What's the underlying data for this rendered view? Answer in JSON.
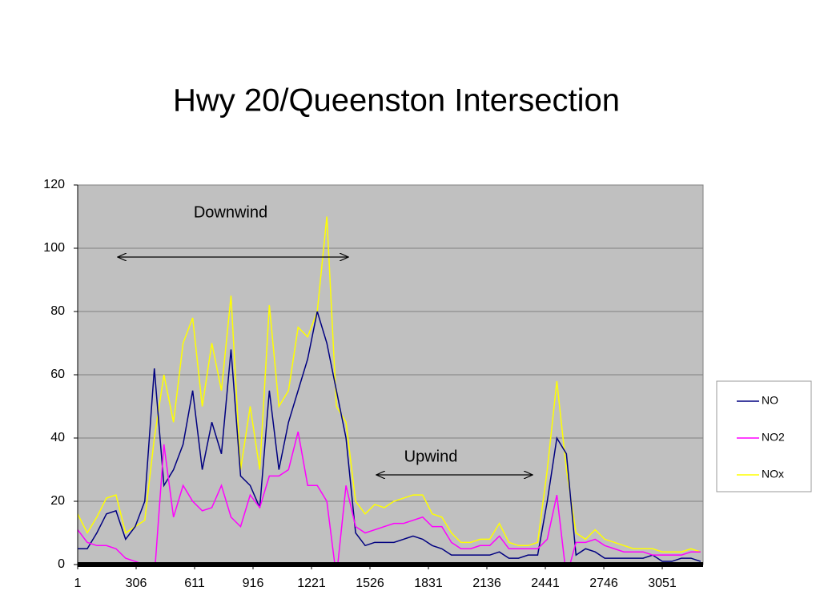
{
  "chart_data": {
    "type": "line",
    "title": "Hwy 20/Queenston Intersection",
    "annotations": [
      "Downwind",
      "Upwind"
    ],
    "x": [
      1,
      51,
      101,
      151,
      201,
      251,
      301,
      351,
      401,
      451,
      501,
      551,
      601,
      651,
      701,
      751,
      801,
      851,
      901,
      951,
      1001,
      1051,
      1101,
      1151,
      1201,
      1251,
      1301,
      1351,
      1401,
      1451,
      1501,
      1551,
      1601,
      1651,
      1701,
      1751,
      1801,
      1851,
      1901,
      1951,
      2001,
      2051,
      2101,
      2151,
      2201,
      2251,
      2301,
      2351,
      2401,
      2451,
      2501,
      2551,
      2601,
      2651,
      2701,
      2751,
      2801,
      2851,
      2901,
      2951,
      3001,
      3051,
      3101,
      3151,
      3201,
      3251
    ],
    "series": [
      {
        "name": "NO",
        "color": "#000080",
        "values": [
          5,
          5,
          10,
          16,
          17,
          8,
          12,
          20,
          62,
          25,
          30,
          38,
          55,
          30,
          45,
          35,
          68,
          28,
          25,
          18,
          55,
          30,
          45,
          55,
          65,
          80,
          70,
          55,
          40,
          10,
          6,
          7,
          7,
          7,
          8,
          9,
          8,
          6,
          5,
          3,
          3,
          3,
          3,
          3,
          4,
          2,
          2,
          3,
          3,
          20,
          40,
          35,
          3,
          5,
          4,
          2,
          2,
          2,
          2,
          2,
          3,
          1,
          1,
          2,
          2,
          1
        ]
      },
      {
        "name": "NO2",
        "color": "#ff00ff",
        "values": [
          11,
          7,
          6,
          6,
          5,
          2,
          1,
          0,
          -4,
          38,
          15,
          25,
          20,
          17,
          18,
          25,
          15,
          12,
          22,
          18,
          28,
          28,
          30,
          42,
          25,
          25,
          20,
          -4,
          25,
          12,
          10,
          11,
          12,
          13,
          13,
          14,
          15,
          12,
          12,
          7,
          5,
          5,
          6,
          6,
          9,
          5,
          5,
          5,
          5,
          8,
          22,
          -4,
          7,
          7,
          8,
          6,
          5,
          4,
          4,
          4,
          3,
          3,
          3,
          3,
          4,
          4
        ]
      },
      {
        "name": "NOx",
        "color": "#ffff00",
        "values": [
          16,
          10,
          15,
          21,
          22,
          10,
          12,
          14,
          40,
          60,
          45,
          70,
          78,
          50,
          70,
          55,
          85,
          30,
          50,
          30,
          82,
          50,
          55,
          75,
          72,
          80,
          110,
          50,
          45,
          20,
          16,
          19,
          18,
          20,
          21,
          22,
          22,
          16,
          15,
          10,
          7,
          7,
          8,
          8,
          13,
          7,
          6,
          6,
          7,
          30,
          58,
          30,
          10,
          8,
          11,
          8,
          7,
          6,
          5,
          5,
          5,
          4,
          4,
          4,
          5,
          4
        ]
      }
    ],
    "xlim": [
      1,
      3264
    ],
    "xticks": [
      1,
      306,
      611,
      916,
      1221,
      1526,
      1831,
      2136,
      2441,
      2746,
      3051
    ],
    "ylim": [
      0,
      120
    ],
    "yticks": [
      0,
      20,
      40,
      60,
      80,
      100,
      120
    ],
    "grid": true,
    "legend": "right"
  }
}
